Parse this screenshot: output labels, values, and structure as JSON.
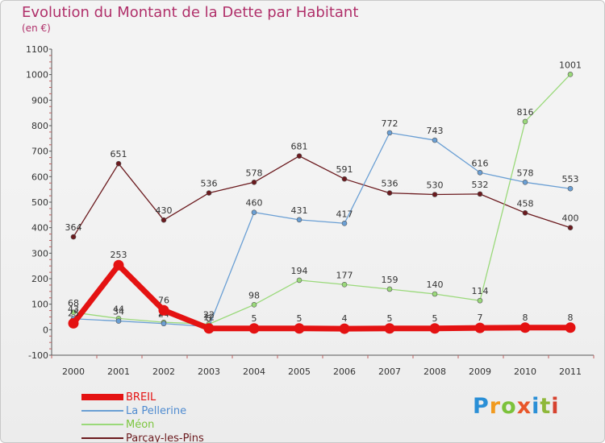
{
  "title": "Evolution du Montant de la Dette par Habitant",
  "subtitle": "(en €)",
  "brand": {
    "text": "Proxiti",
    "letter_colors": [
      "#2a8fd6",
      "#f19a1f",
      "#7cc23b",
      "#e8562a",
      "#2a8fd6",
      "#8fb83a",
      "#d6422f"
    ]
  },
  "chart_data": {
    "type": "line",
    "x": [
      "2000",
      "2001",
      "2002",
      "2003",
      "2004",
      "2005",
      "2006",
      "2007",
      "2008",
      "2009",
      "2010",
      "2011"
    ],
    "ylim": [
      -100,
      1100
    ],
    "yticks": [
      -100,
      0,
      100,
      200,
      300,
      400,
      500,
      600,
      700,
      800,
      900,
      1000,
      1100
    ],
    "grid": false,
    "legend_position": "bottom-left",
    "series": [
      {
        "name": "Parçay-les-Pins",
        "color": "#6b1a1e",
        "label_color": "#6b1a1e",
        "values": [
          364,
          651,
          430,
          536,
          578,
          681,
          591,
          536,
          530,
          532,
          458,
          400
        ]
      },
      {
        "name": "Méon",
        "color": "#9ad97a",
        "label_color": "#7cc53f",
        "values": [
          68,
          44,
          29,
          22,
          98,
          194,
          177,
          159,
          140,
          114,
          816,
          1001
        ]
      },
      {
        "name": "La Pellerine",
        "color": "#6a9fd4",
        "label_color": "#4f8bd0",
        "values": [
          43,
          34,
          24,
          12,
          460,
          431,
          417,
          772,
          743,
          616,
          578,
          553
        ]
      },
      {
        "name": "BREIL",
        "color": "#e41212",
        "label_color": "#e41212",
        "values": [
          25,
          253,
          76,
          5,
          5,
          5,
          4,
          5,
          5,
          7,
          8,
          8
        ]
      }
    ],
    "legend_order": [
      "BREIL",
      "La Pellerine",
      "Méon",
      "Parçay-les-Pins"
    ]
  }
}
